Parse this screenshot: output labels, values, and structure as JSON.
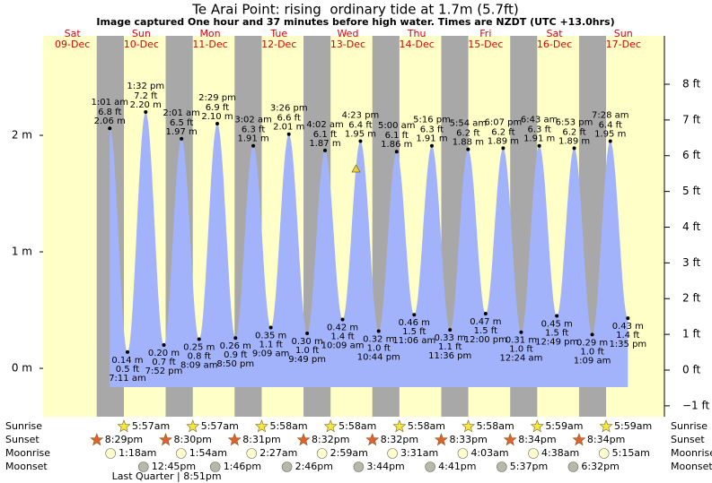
{
  "chart_data": {
    "type": "tide",
    "title": "Te Arai Point: rising  ordinary tide at 1.7m (5.7ft)",
    "subtitle": "Image captured One hour and 37 minutes before high water. Times are NZDT (UTC +13.0hrs)",
    "ylim": [
      -0.415,
      2.854
    ],
    "yticks": [
      {
        "value": 0,
        "label": "0 m"
      },
      {
        "value": 1,
        "label": "1 m"
      },
      {
        "value": 2,
        "label": "2 m"
      }
    ],
    "y2lim": [
      -1.304,
      9.354
    ],
    "y2ticks": [
      {
        "value": -1,
        "label": "−1 ft"
      },
      {
        "value": 0,
        "label": "0 ft"
      },
      {
        "value": 1,
        "label": "1 ft"
      },
      {
        "value": 2,
        "label": "2 ft"
      },
      {
        "value": 3,
        "label": "3 ft"
      },
      {
        "value": 4,
        "label": "4 ft"
      },
      {
        "value": 5,
        "label": "5 ft"
      },
      {
        "value": 6,
        "label": "6 ft"
      },
      {
        "value": 7,
        "label": "7 ft"
      },
      {
        "value": 8,
        "label": "8 ft"
      }
    ],
    "row_labels": [
      "Sunrise",
      "Sunset",
      "Moonrise",
      "Moonset"
    ],
    "days": [
      {
        "name": "Sat",
        "date": "09-Dec",
        "sunset": "8:29pm",
        "tides": []
      },
      {
        "name": "Sun",
        "date": "10-Dec",
        "sunrise": "5:57am",
        "sunset": "8:30pm",
        "moonrise": "1:18am",
        "moonset": "12:45pm",
        "phase": "Last Quarter | 8:51pm",
        "tides": [
          {
            "time": "1:01 am",
            "m": 2.06,
            "m_label": "2.06 m",
            "ft": 6.8,
            "ft_label": "6.8 ft"
          },
          {
            "time": "7:11 am",
            "m": 0.14,
            "m_label": "0.14 m",
            "ft": 0.5,
            "ft_label": "0.5 ft"
          },
          {
            "time": "1:32 pm",
            "m": 2.2,
            "m_label": "2.20 m",
            "ft": 7.2,
            "ft_label": "7.2 ft"
          },
          {
            "time": "7:52 pm",
            "m": 0.2,
            "m_label": "0.20 m",
            "ft": 0.7,
            "ft_label": "0.7 ft"
          }
        ]
      },
      {
        "name": "Mon",
        "date": "11-Dec",
        "sunrise": "5:57am",
        "sunset": "8:31pm",
        "moonrise": "1:54am",
        "moonset": "1:46pm",
        "tides": [
          {
            "time": "2:01 am",
            "m": 1.97,
            "m_label": "1.97 m",
            "ft": 6.5,
            "ft_label": "6.5 ft"
          },
          {
            "time": "8:09 am",
            "m": 0.25,
            "m_label": "0.25 m",
            "ft": 0.8,
            "ft_label": "0.8 ft"
          },
          {
            "time": "2:29 pm",
            "m": 2.1,
            "m_label": "2.10 m",
            "ft": 6.9,
            "ft_label": "6.9 ft"
          },
          {
            "time": "8:50 pm",
            "m": 0.26,
            "m_label": "0.26 m",
            "ft": 0.9,
            "ft_label": "0.9 ft"
          }
        ]
      },
      {
        "name": "Tue",
        "date": "12-Dec",
        "sunrise": "5:58am",
        "sunset": "8:32pm",
        "moonrise": "2:27am",
        "moonset": "2:46pm",
        "tides": [
          {
            "time": "3:02 am",
            "m": 1.91,
            "m_label": "1.91 m",
            "ft": 6.3,
            "ft_label": "6.3 ft"
          },
          {
            "time": "9:09 am",
            "m": 0.35,
            "m_label": "0.35 m",
            "ft": 1.1,
            "ft_label": "1.1 ft"
          },
          {
            "time": "3:26 pm",
            "m": 2.01,
            "m_label": "2.01 m",
            "ft": 6.6,
            "ft_label": "6.6 ft"
          },
          {
            "time": "9:49 pm",
            "m": 0.3,
            "m_label": "0.30 m",
            "ft": 1.0,
            "ft_label": "1.0 ft"
          }
        ]
      },
      {
        "name": "Wed",
        "date": "13-Dec",
        "sunrise": "5:58am",
        "sunset": "8:32pm",
        "moonrise": "2:59am",
        "moonset": "3:44pm",
        "tides": [
          {
            "time": "4:02 am",
            "m": 1.87,
            "m_label": "1.87 m",
            "ft": 6.1,
            "ft_label": "6.1 ft"
          },
          {
            "time": "10:09 am",
            "m": 0.42,
            "m_label": "0.42 m",
            "ft": 1.4,
            "ft_label": "1.4 ft"
          },
          {
            "time": "4:23 pm",
            "m": 1.95,
            "m_label": "1.95 m",
            "ft": 6.4,
            "ft_label": "6.4 ft"
          },
          {
            "time": "10:44 pm",
            "m": 0.32,
            "m_label": "0.32 m",
            "ft": 1.0,
            "ft_label": "1.0 ft"
          }
        ]
      },
      {
        "name": "Thu",
        "date": "14-Dec",
        "sunrise": "5:58am",
        "sunset": "8:33pm",
        "moonrise": "3:31am",
        "moonset": "4:41pm",
        "tides": [
          {
            "time": "5:00 am",
            "m": 1.86,
            "m_label": "1.86 m",
            "ft": 6.1,
            "ft_label": "6.1 ft"
          },
          {
            "time": "11:06 am",
            "m": 0.46,
            "m_label": "0.46 m",
            "ft": 1.5,
            "ft_label": "1.5 ft"
          },
          {
            "time": "5:16 pm",
            "m": 1.91,
            "m_label": "1.91 m",
            "ft": 6.3,
            "ft_label": "6.3 ft"
          },
          {
            "time": "11:36 pm",
            "m": 0.33,
            "m_label": "0.33 m",
            "ft": 1.1,
            "ft_label": "1.1 ft"
          }
        ]
      },
      {
        "name": "Fri",
        "date": "15-Dec",
        "sunrise": "5:58am",
        "sunset": "8:34pm",
        "moonrise": "4:03am",
        "moonset": "5:37pm",
        "tides": [
          {
            "time": "5:54 am",
            "m": 1.88,
            "m_label": "1.88 m",
            "ft": 6.2,
            "ft_label": "6.2 ft"
          },
          {
            "time": "12:00 pm",
            "m": 0.47,
            "m_label": "0.47 m",
            "ft": 1.5,
            "ft_label": "1.5 ft"
          },
          {
            "time": "6:07 pm",
            "m": 1.89,
            "m_label": "1.89 m",
            "ft": 6.2,
            "ft_label": "6.2 ft"
          }
        ]
      },
      {
        "name": "Sat",
        "date": "16-Dec",
        "sunrise": "5:59am",
        "sunset": "8:34pm",
        "moonrise": "4:38am",
        "moonset": "6:32pm",
        "tides": [
          {
            "time": "12:24 am",
            "m": 0.31,
            "m_label": "0.31 m",
            "ft": 1.0,
            "ft_label": "1.0 ft"
          },
          {
            "time": "6:43 am",
            "m": 1.91,
            "m_label": "1.91 m",
            "ft": 6.3,
            "ft_label": "6.3 ft"
          },
          {
            "time": "12:49 pm",
            "m": 0.45,
            "m_label": "0.45 m",
            "ft": 1.5,
            "ft_label": "1.5 ft"
          },
          {
            "time": "6:53 pm",
            "m": 1.89,
            "m_label": "1.89 m",
            "ft": 6.2,
            "ft_label": "6.2 ft"
          }
        ]
      },
      {
        "name": "Sun",
        "date": "17-Dec",
        "sunrise": "5:59am",
        "moonrise": "5:15am",
        "tides": [
          {
            "time": "1:09 am",
            "m": 0.29,
            "m_label": "0.29 m",
            "ft": 1.0,
            "ft_label": "1.0 ft"
          },
          {
            "time": "7:28 am",
            "m": 1.95,
            "m_label": "1.95 m",
            "ft": 6.4,
            "ft_label": "6.4 ft"
          },
          {
            "time": "1:35 pm",
            "m": 0.43,
            "m_label": "0.43 m",
            "ft": 1.4,
            "ft_label": "1.4 ft"
          }
        ]
      }
    ]
  }
}
